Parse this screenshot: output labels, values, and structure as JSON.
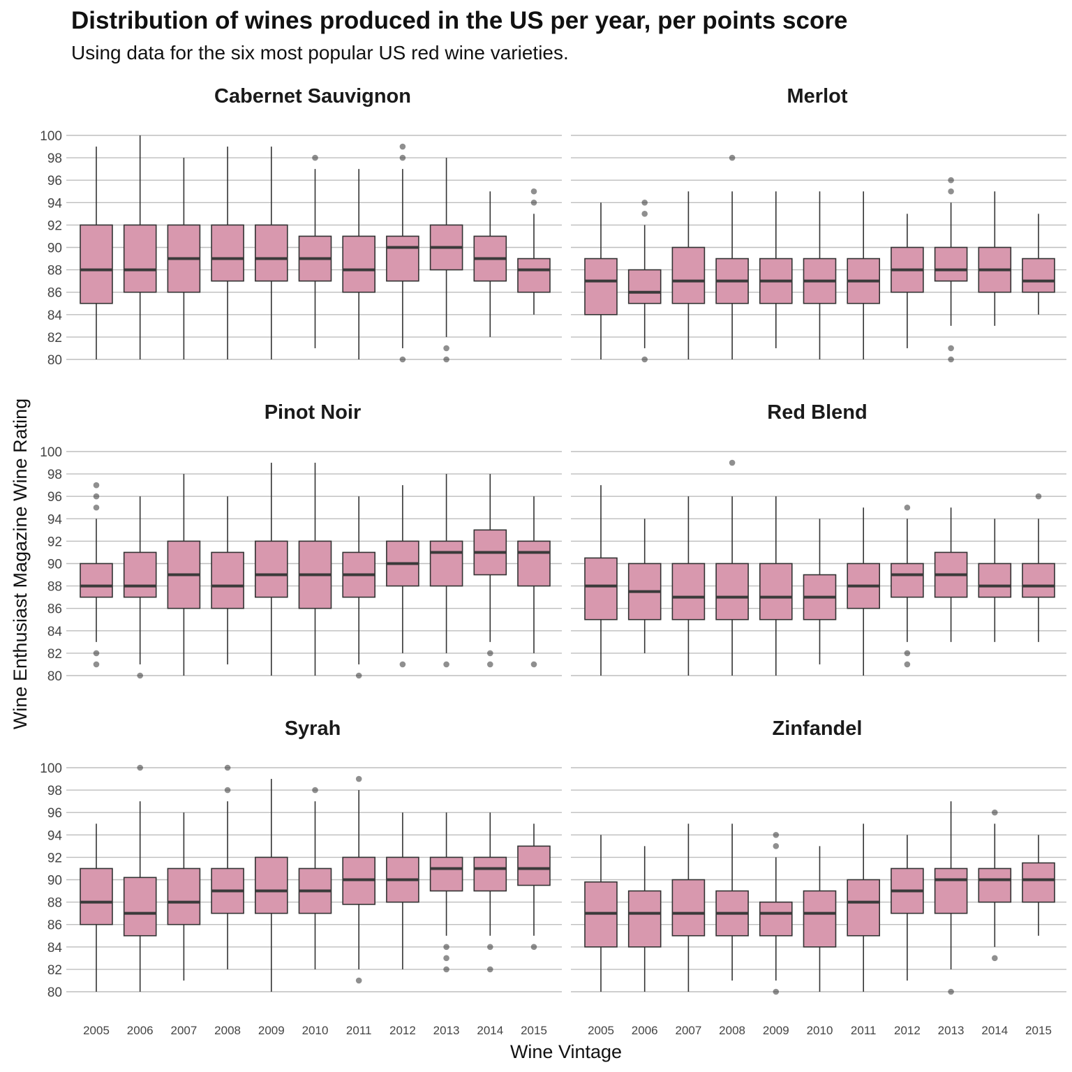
{
  "title": "Distribution of wines produced in the US per year, per points score",
  "subtitle": "Using data for the six most popular US red wine varieties.",
  "colors": {
    "box_fill": "#d898ae",
    "box_stroke": "#333333",
    "median": "#3a3a3a",
    "grid": "#bdbdbd",
    "outlier": "#333333"
  },
  "chart_data": {
    "type": "boxplot",
    "xlabel": "Wine Vintage",
    "ylabel": "Wine Enthusiast Magazine Wine Rating",
    "categories": [
      "2005",
      "2006",
      "2007",
      "2008",
      "2009",
      "2010",
      "2011",
      "2012",
      "2013",
      "2014",
      "2015"
    ],
    "y_ticks": [
      "80",
      "82",
      "84",
      "86",
      "88",
      "90",
      "92",
      "94",
      "96",
      "98",
      "100"
    ],
    "ylim": [
      80,
      100
    ],
    "grid": true,
    "panels": [
      {
        "name": "Cabernet Sauvignon",
        "boxes": [
          {
            "min": 80,
            "q1": 85,
            "median": 88,
            "q3": 92,
            "max": 99,
            "outliers": []
          },
          {
            "min": 80,
            "q1": 86,
            "median": 88,
            "q3": 92,
            "max": 100,
            "outliers": []
          },
          {
            "min": 80,
            "q1": 86,
            "median": 89,
            "q3": 92,
            "max": 98,
            "outliers": []
          },
          {
            "min": 80,
            "q1": 87,
            "median": 89,
            "q3": 92,
            "max": 99,
            "outliers": []
          },
          {
            "min": 80,
            "q1": 87,
            "median": 89,
            "q3": 92,
            "max": 99,
            "outliers": []
          },
          {
            "min": 81,
            "q1": 87,
            "median": 89,
            "q3": 91,
            "max": 97,
            "outliers": [
              98
            ]
          },
          {
            "min": 80,
            "q1": 86,
            "median": 88,
            "q3": 91,
            "max": 97,
            "outliers": []
          },
          {
            "min": 81,
            "q1": 87,
            "median": 90,
            "q3": 91,
            "max": 97,
            "outliers": [
              99,
              98,
              80
            ]
          },
          {
            "min": 82,
            "q1": 88,
            "median": 90,
            "q3": 92,
            "max": 98,
            "outliers": [
              81,
              80
            ]
          },
          {
            "min": 82,
            "q1": 87,
            "median": 89,
            "q3": 91,
            "max": 95,
            "outliers": []
          },
          {
            "min": 84,
            "q1": 86,
            "median": 88,
            "q3": 89,
            "max": 93,
            "outliers": [
              95,
              94
            ]
          }
        ]
      },
      {
        "name": "Merlot",
        "boxes": [
          {
            "min": 80,
            "q1": 84,
            "median": 87,
            "q3": 89,
            "max": 94,
            "outliers": []
          },
          {
            "min": 81,
            "q1": 85,
            "median": 86,
            "q3": 88,
            "max": 92,
            "outliers": [
              94,
              93,
              80
            ]
          },
          {
            "min": 80,
            "q1": 85,
            "median": 87,
            "q3": 90,
            "max": 95,
            "outliers": []
          },
          {
            "min": 80,
            "q1": 85,
            "median": 87,
            "q3": 89,
            "max": 95,
            "outliers": [
              98
            ]
          },
          {
            "min": 81,
            "q1": 85,
            "median": 87,
            "q3": 89,
            "max": 95,
            "outliers": []
          },
          {
            "min": 80,
            "q1": 85,
            "median": 87,
            "q3": 89,
            "max": 95,
            "outliers": []
          },
          {
            "min": 80,
            "q1": 85,
            "median": 87,
            "q3": 89,
            "max": 95,
            "outliers": []
          },
          {
            "min": 81,
            "q1": 86,
            "median": 88,
            "q3": 90,
            "max": 93,
            "outliers": []
          },
          {
            "min": 83,
            "q1": 87,
            "median": 88,
            "q3": 90,
            "max": 94,
            "outliers": [
              96,
              95,
              81,
              80
            ]
          },
          {
            "min": 83,
            "q1": 86,
            "median": 88,
            "q3": 90,
            "max": 95,
            "outliers": []
          },
          {
            "min": 84,
            "q1": 86,
            "median": 87,
            "q3": 89,
            "max": 93,
            "outliers": []
          }
        ]
      },
      {
        "name": "Pinot Noir",
        "boxes": [
          {
            "min": 83,
            "q1": 87,
            "median": 88,
            "q3": 90,
            "max": 94,
            "outliers": [
              97,
              96,
              95,
              82,
              81
            ]
          },
          {
            "min": 81,
            "q1": 87,
            "median": 88,
            "q3": 91,
            "max": 96,
            "outliers": [
              80
            ]
          },
          {
            "min": 80,
            "q1": 86,
            "median": 89,
            "q3": 92,
            "max": 98,
            "outliers": []
          },
          {
            "min": 81,
            "q1": 86,
            "median": 88,
            "q3": 91,
            "max": 96,
            "outliers": []
          },
          {
            "min": 80,
            "q1": 87,
            "median": 89,
            "q3": 92,
            "max": 99,
            "outliers": []
          },
          {
            "min": 80,
            "q1": 86,
            "median": 89,
            "q3": 92,
            "max": 99,
            "outliers": []
          },
          {
            "min": 81,
            "q1": 87,
            "median": 89,
            "q3": 91,
            "max": 96,
            "outliers": [
              80
            ]
          },
          {
            "min": 82,
            "q1": 88,
            "median": 90,
            "q3": 92,
            "max": 97,
            "outliers": [
              81
            ]
          },
          {
            "min": 82,
            "q1": 88,
            "median": 91,
            "q3": 92,
            "max": 98,
            "outliers": [
              81
            ]
          },
          {
            "min": 83,
            "q1": 89,
            "median": 91,
            "q3": 93,
            "max": 98,
            "outliers": [
              82,
              81
            ]
          },
          {
            "min": 82,
            "q1": 88,
            "median": 91,
            "q3": 92,
            "max": 96,
            "outliers": [
              81
            ]
          }
        ]
      },
      {
        "name": "Red Blend",
        "boxes": [
          {
            "min": 80,
            "q1": 85,
            "median": 88,
            "q3": 90.5,
            "max": 97,
            "outliers": []
          },
          {
            "min": 82,
            "q1": 85,
            "median": 87.5,
            "q3": 90,
            "max": 94,
            "outliers": []
          },
          {
            "min": 80,
            "q1": 85,
            "median": 87,
            "q3": 90,
            "max": 96,
            "outliers": []
          },
          {
            "min": 80,
            "q1": 85,
            "median": 87,
            "q3": 90,
            "max": 96,
            "outliers": [
              99
            ]
          },
          {
            "min": 80,
            "q1": 85,
            "median": 87,
            "q3": 90,
            "max": 96,
            "outliers": []
          },
          {
            "min": 81,
            "q1": 85,
            "median": 87,
            "q3": 89,
            "max": 94,
            "outliers": []
          },
          {
            "min": 80,
            "q1": 86,
            "median": 88,
            "q3": 90,
            "max": 95,
            "outliers": []
          },
          {
            "min": 83,
            "q1": 87,
            "median": 89,
            "q3": 90,
            "max": 94,
            "outliers": [
              95,
              82,
              81
            ]
          },
          {
            "min": 83,
            "q1": 87,
            "median": 89,
            "q3": 91,
            "max": 95,
            "outliers": []
          },
          {
            "min": 83,
            "q1": 87,
            "median": 88,
            "q3": 90,
            "max": 94,
            "outliers": []
          },
          {
            "min": 83,
            "q1": 87,
            "median": 88,
            "q3": 90,
            "max": 94,
            "outliers": [
              96
            ]
          }
        ]
      },
      {
        "name": "Syrah",
        "boxes": [
          {
            "min": 80,
            "q1": 86,
            "median": 88,
            "q3": 91,
            "max": 95,
            "outliers": []
          },
          {
            "min": 80,
            "q1": 85,
            "median": 87,
            "q3": 90.2,
            "max": 97,
            "outliers": [
              100
            ]
          },
          {
            "min": 81,
            "q1": 86,
            "median": 88,
            "q3": 91,
            "max": 96,
            "outliers": []
          },
          {
            "min": 82,
            "q1": 87,
            "median": 89,
            "q3": 91,
            "max": 97,
            "outliers": [
              100,
              98
            ]
          },
          {
            "min": 80,
            "q1": 87,
            "median": 89,
            "q3": 92,
            "max": 99,
            "outliers": []
          },
          {
            "min": 82,
            "q1": 87,
            "median": 89,
            "q3": 91,
            "max": 97,
            "outliers": [
              98
            ]
          },
          {
            "min": 82,
            "q1": 87.8,
            "median": 90,
            "q3": 92,
            "max": 98,
            "outliers": [
              99,
              81
            ]
          },
          {
            "min": 82,
            "q1": 88,
            "median": 90,
            "q3": 92,
            "max": 96,
            "outliers": []
          },
          {
            "min": 85,
            "q1": 89,
            "median": 91,
            "q3": 92,
            "max": 96,
            "outliers": [
              84,
              83,
              82
            ]
          },
          {
            "min": 85,
            "q1": 89,
            "median": 91,
            "q3": 92,
            "max": 96,
            "outliers": [
              84,
              82
            ]
          },
          {
            "min": 85,
            "q1": 89.5,
            "median": 91,
            "q3": 93,
            "max": 95,
            "outliers": [
              84
            ]
          }
        ]
      },
      {
        "name": "Zinfandel",
        "boxes": [
          {
            "min": 80,
            "q1": 84,
            "median": 87,
            "q3": 89.8,
            "max": 94,
            "outliers": []
          },
          {
            "min": 80,
            "q1": 84,
            "median": 87,
            "q3": 89,
            "max": 93,
            "outliers": []
          },
          {
            "min": 80,
            "q1": 85,
            "median": 87,
            "q3": 90,
            "max": 95,
            "outliers": []
          },
          {
            "min": 81,
            "q1": 85,
            "median": 87,
            "q3": 89,
            "max": 95,
            "outliers": []
          },
          {
            "min": 81,
            "q1": 85,
            "median": 87,
            "q3": 88,
            "max": 92,
            "outliers": [
              94,
              93,
              80
            ]
          },
          {
            "min": 80,
            "q1": 84,
            "median": 87,
            "q3": 89,
            "max": 93,
            "outliers": []
          },
          {
            "min": 80,
            "q1": 85,
            "median": 88,
            "q3": 90,
            "max": 95,
            "outliers": []
          },
          {
            "min": 81,
            "q1": 87,
            "median": 89,
            "q3": 91,
            "max": 94,
            "outliers": []
          },
          {
            "min": 82,
            "q1": 87,
            "median": 90,
            "q3": 91,
            "max": 97,
            "outliers": [
              80
            ]
          },
          {
            "min": 84,
            "q1": 88,
            "median": 90,
            "q3": 91,
            "max": 95,
            "outliers": [
              96,
              83
            ]
          },
          {
            "min": 85,
            "q1": 88,
            "median": 90,
            "q3": 91.5,
            "max": 94,
            "outliers": []
          }
        ]
      }
    ]
  }
}
